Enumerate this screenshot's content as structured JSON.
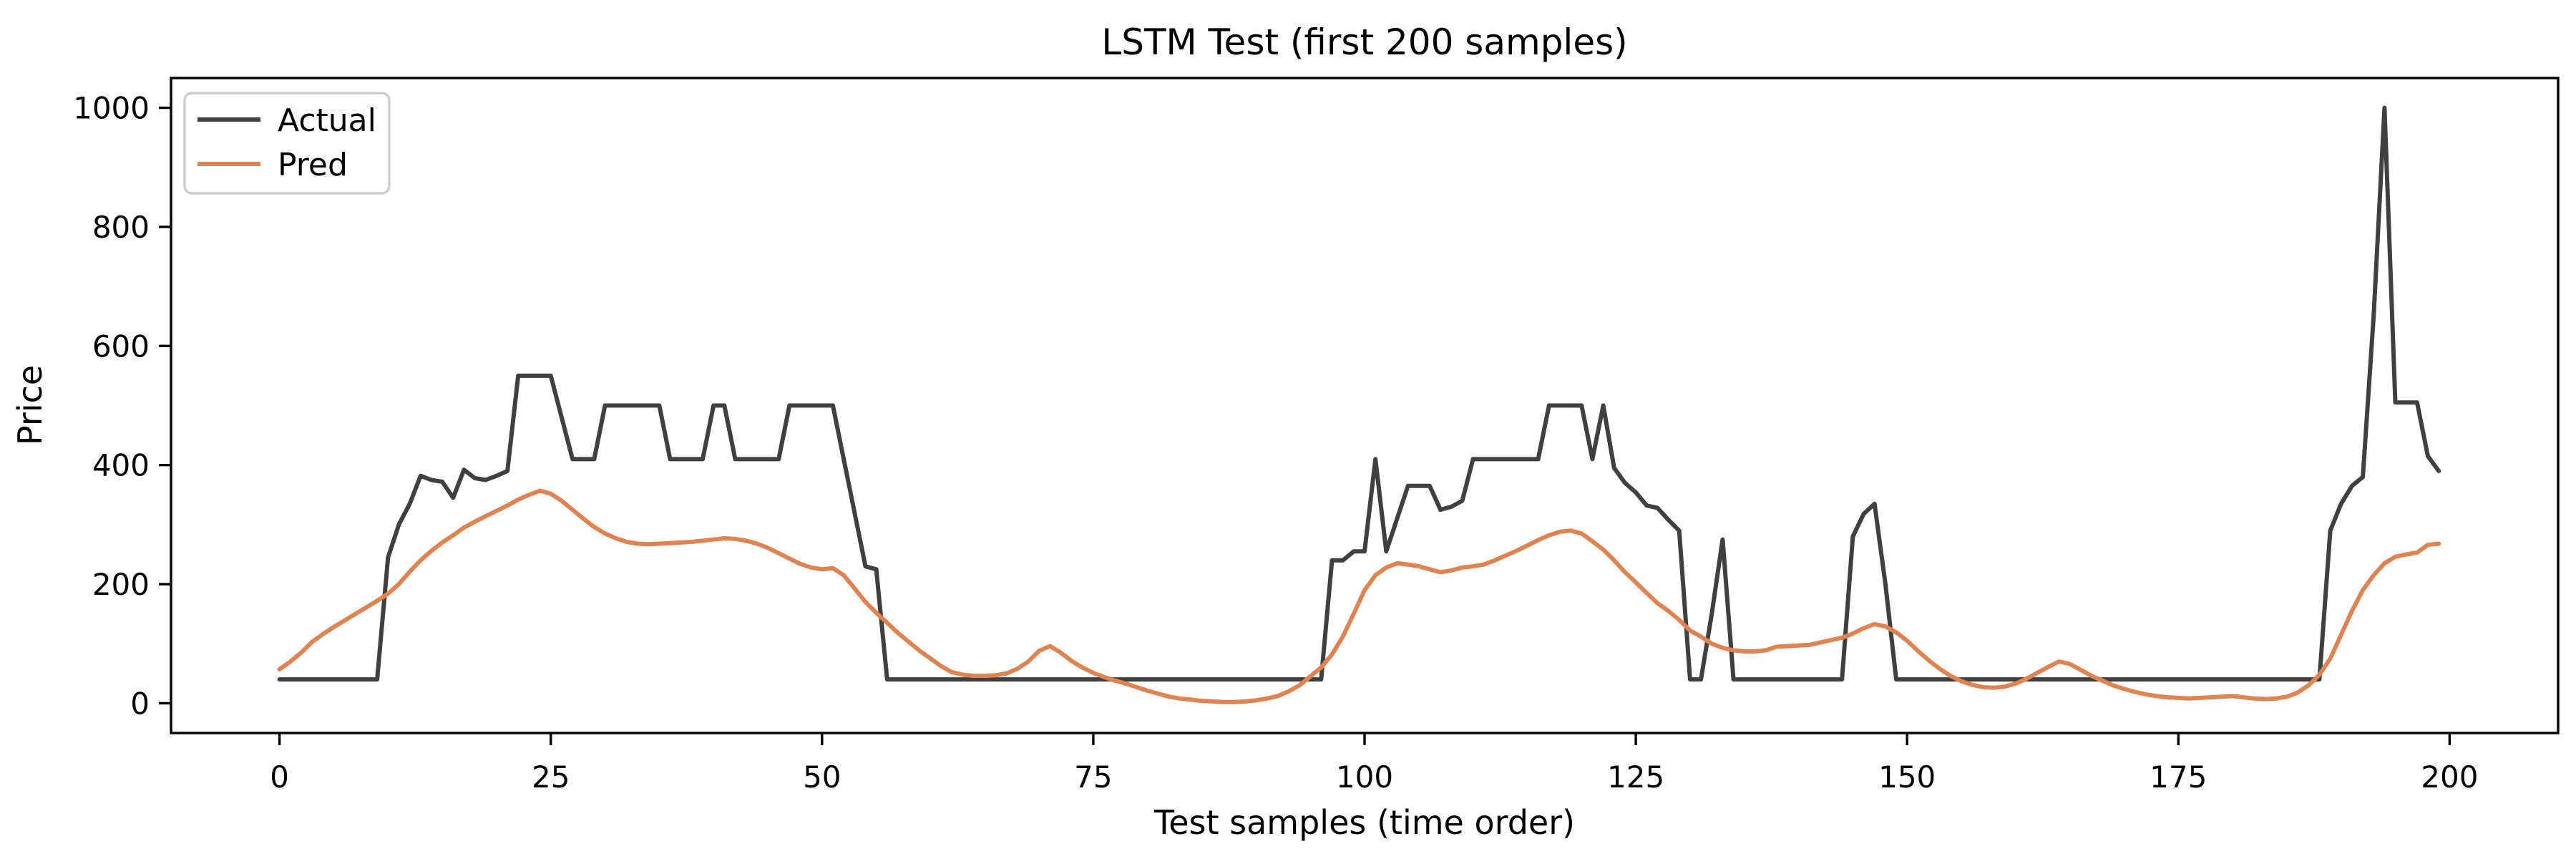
{
  "chart_data": {
    "type": "line",
    "title": "LSTM Test (first 200 samples)",
    "xlabel": "Test samples (time order)",
    "ylabel": "Price",
    "xlim": [
      -10,
      210
    ],
    "ylim": [
      -50,
      1050
    ],
    "xticks": [
      0,
      25,
      50,
      75,
      100,
      125,
      150,
      175,
      200
    ],
    "yticks": [
      0,
      200,
      400,
      600,
      800,
      1000
    ],
    "grid": false,
    "legend_position": "upper left",
    "background_color": "#ffffff",
    "spine_color": "#000000",
    "series": [
      {
        "name": "Actual",
        "color": "#404040",
        "values": [
          40,
          40,
          40,
          40,
          40,
          40,
          40,
          40,
          40,
          40,
          245,
          300,
          335,
          382,
          375,
          372,
          345,
          392,
          378,
          375,
          382,
          390,
          550,
          550,
          550,
          550,
          480,
          410,
          410,
          410,
          500,
          500,
          500,
          500,
          500,
          500,
          410,
          410,
          410,
          410,
          500,
          500,
          410,
          410,
          410,
          410,
          410,
          500,
          500,
          500,
          500,
          500,
          410,
          320,
          230,
          225,
          40,
          40,
          40,
          40,
          40,
          40,
          40,
          40,
          40,
          40,
          40,
          40,
          40,
          40,
          40,
          40,
          40,
          40,
          40,
          40,
          40,
          40,
          40,
          40,
          40,
          40,
          40,
          40,
          40,
          40,
          40,
          40,
          40,
          40,
          40,
          40,
          40,
          40,
          40,
          40,
          40,
          240,
          240,
          255,
          255,
          410,
          255,
          310,
          365,
          365,
          365,
          325,
          330,
          340,
          410,
          410,
          410,
          410,
          410,
          410,
          410,
          500,
          500,
          500,
          500,
          410,
          500,
          395,
          370,
          354,
          332,
          328,
          308,
          290,
          40,
          40,
          150,
          275,
          40,
          40,
          40,
          40,
          40,
          40,
          40,
          40,
          40,
          40,
          40,
          280,
          318,
          335,
          200,
          40,
          40,
          40,
          40,
          40,
          40,
          40,
          40,
          40,
          40,
          40,
          40,
          40,
          40,
          40,
          40,
          40,
          40,
          40,
          40,
          40,
          40,
          40,
          40,
          40,
          40,
          40,
          40,
          40,
          40,
          40,
          40,
          40,
          40,
          40,
          40,
          40,
          40,
          40,
          40,
          290,
          335,
          365,
          380,
          650,
          1000,
          505,
          505,
          505,
          415,
          390
        ]
      },
      {
        "name": "Pred",
        "color": "#dd8452",
        "values": [
          57,
          70,
          85,
          103,
          116,
          128,
          139,
          150,
          161,
          172,
          184,
          200,
          221,
          240,
          256,
          270,
          282,
          295,
          305,
          314,
          323,
          332,
          342,
          350,
          357,
          352,
          340,
          325,
          310,
          296,
          285,
          277,
          271,
          268,
          267,
          268,
          269,
          270,
          271,
          273,
          275,
          277,
          276,
          273,
          268,
          261,
          252,
          243,
          234,
          228,
          225,
          227,
          215,
          193,
          170,
          152,
          135,
          118,
          103,
          88,
          75,
          62,
          52,
          48,
          46,
          46,
          47,
          50,
          58,
          70,
          88,
          96,
          85,
          71,
          60,
          51,
          44,
          38,
          33,
          27,
          21,
          16,
          11,
          8,
          6,
          4,
          3,
          2,
          2,
          3,
          5,
          8,
          12,
          20,
          30,
          45,
          60,
          82,
          112,
          150,
          190,
          215,
          228,
          235,
          233,
          230,
          225,
          220,
          223,
          228,
          230,
          233,
          240,
          248,
          256,
          265,
          274,
          282,
          288,
          290,
          285,
          272,
          258,
          240,
          220,
          203,
          185,
          168,
          155,
          140,
          122,
          112,
          100,
          93,
          89,
          87,
          87,
          89,
          95,
          96,
          97,
          98,
          102,
          106,
          110,
          117,
          126,
          133,
          129,
          119,
          105,
          88,
          72,
          58,
          46,
          37,
          31,
          27,
          26,
          28,
          33,
          41,
          51,
          61,
          70,
          66,
          56,
          46,
          38,
          30,
          24,
          19,
          15,
          12,
          10,
          9,
          8,
          9,
          10,
          11,
          12,
          10,
          8,
          7,
          8,
          11,
          18,
          30,
          48,
          75,
          115,
          155,
          190,
          215,
          235,
          246,
          250,
          253,
          266,
          268
        ]
      }
    ]
  }
}
